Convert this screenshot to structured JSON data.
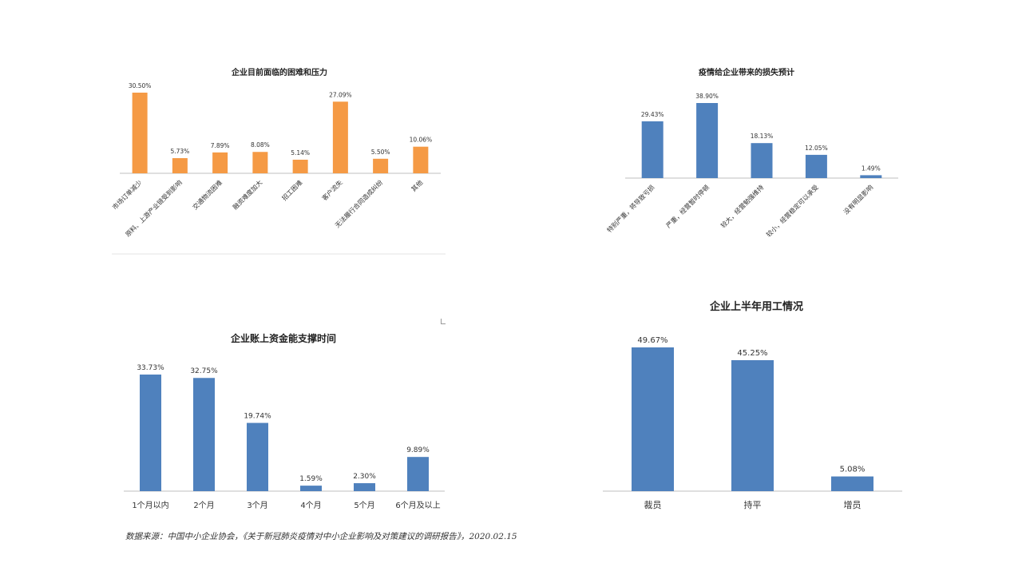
{
  "chart_data": [
    {
      "type": "bar",
      "title": "企业目前面临的困难和压力",
      "categories": [
        "市场订单减少",
        "原料、上游产业链受到影响",
        "交通物流困难",
        "融资难度加大",
        "招工困难",
        "客户流失",
        "无法履行合同造成纠纷",
        "其他"
      ],
      "values": [
        30.5,
        5.73,
        7.89,
        8.08,
        5.14,
        27.09,
        5.5,
        10.06
      ],
      "value_labels": [
        "30.50%",
        "5.73%",
        "7.89%",
        "8.08%",
        "5.14%",
        "27.09%",
        "5.50%",
        "10.06%"
      ],
      "ylim": [
        0,
        30.5
      ],
      "color": "#F59A45",
      "category_label_rotation": "-45deg"
    },
    {
      "type": "bar",
      "title": "疫情给企业带来的损失预计",
      "categories": [
        "特别严重，将导致亏损",
        "严重，经营暂时停顿",
        "较大，经营勉强维持",
        "较小，经营稳定可以承受",
        "没有明显影响"
      ],
      "values": [
        29.43,
        38.9,
        18.13,
        12.05,
        1.49
      ],
      "value_labels": [
        "29.43%",
        "38.90%",
        "18.13%",
        "12.05%",
        "1.49%"
      ],
      "ylim": [
        0,
        38.9
      ],
      "color": "#4F81BD",
      "category_label_rotation": "-45deg"
    },
    {
      "type": "bar",
      "title": "企业账上资金能支撑时间",
      "categories": [
        "1个月以内",
        "2个月",
        "3个月",
        "4个月",
        "5个月",
        "6个月及以上"
      ],
      "values": [
        33.73,
        32.75,
        19.74,
        1.59,
        2.3,
        9.89
      ],
      "value_labels": [
        "33.73%",
        "32.75%",
        "19.74%",
        "1.59%",
        "2.30%",
        "9.89%"
      ],
      "ylim": [
        0,
        33.73
      ],
      "color": "#4F81BD",
      "category_label_rotation": "0deg"
    },
    {
      "type": "bar",
      "title": "企业上半年用工情况",
      "categories": [
        "裁员",
        "持平",
        "增员"
      ],
      "values": [
        49.67,
        45.25,
        5.08
      ],
      "value_labels": [
        "49.67%",
        "45.25%",
        "5.08%"
      ],
      "ylim": [
        0,
        49.67
      ],
      "color": "#4F81BD",
      "category_label_rotation": "0deg"
    }
  ],
  "source_note": "数据来源：中国中小企业协会，《关于新冠肺炎疫情对中小企业影响及对策建议的调研报告》，2020.02.15"
}
